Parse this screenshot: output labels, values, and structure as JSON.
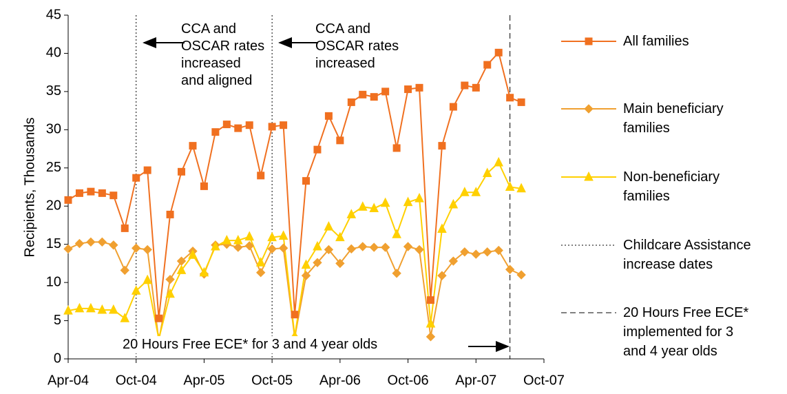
{
  "chart_data": {
    "type": "line",
    "x": [
      "Apr-04",
      "May-04",
      "Jun-04",
      "Jul-04",
      "Aug-04",
      "Sep-04",
      "Oct-04",
      "Nov-04",
      "Dec-04",
      "Jan-05",
      "Feb-05",
      "Mar-05",
      "Apr-05",
      "May-05",
      "Jun-05",
      "Jul-05",
      "Aug-05",
      "Sep-05",
      "Oct-05",
      "Nov-05",
      "Dec-05",
      "Jan-06",
      "Feb-06",
      "Mar-06",
      "Apr-06",
      "May-06",
      "Jun-06",
      "Jul-06",
      "Aug-06",
      "Sep-06",
      "Oct-06",
      "Nov-06",
      "Dec-06",
      "Jan-07",
      "Feb-07",
      "Mar-07",
      "Apr-07",
      "May-07",
      "Jun-07",
      "Jul-07",
      "Aug-07"
    ],
    "series": [
      {
        "name": "All families",
        "color": "#f07020",
        "marker": "square",
        "values": [
          20.8,
          21.7,
          21.9,
          21.7,
          21.4,
          17.1,
          23.7,
          24.7,
          5.3,
          18.9,
          24.5,
          27.9,
          22.6,
          29.7,
          30.7,
          30.2,
          30.6,
          24.0,
          30.4,
          30.6,
          5.8,
          23.3,
          27.4,
          31.8,
          28.6,
          33.6,
          34.6,
          34.3,
          35.0,
          27.6,
          35.3,
          35.5,
          7.7,
          27.9,
          33.0,
          35.8,
          35.5,
          38.5,
          40.1,
          34.2,
          33.6
        ]
      },
      {
        "name": "Main beneficiary families",
        "color": "#f0a030",
        "marker": "diamond",
        "values": [
          14.4,
          15.1,
          15.3,
          15.3,
          14.9,
          11.6,
          14.5,
          14.3,
          2.4,
          10.4,
          12.8,
          14.1,
          11.1,
          14.9,
          15.0,
          14.6,
          14.8,
          11.3,
          14.4,
          14.5,
          2.8,
          10.9,
          12.6,
          14.3,
          12.5,
          14.4,
          14.7,
          14.6,
          14.6,
          11.2,
          14.7,
          14.3,
          2.9,
          10.9,
          12.8,
          14.0,
          13.7,
          14.0,
          14.2,
          11.7,
          11.0
        ]
      },
      {
        "name": "Non-beneficiary families",
        "color": "#ffd000",
        "marker": "triangle",
        "values": [
          6.3,
          6.6,
          6.6,
          6.4,
          6.4,
          5.3,
          8.9,
          10.3,
          2.6,
          8.5,
          11.6,
          13.6,
          11.3,
          14.7,
          15.5,
          15.5,
          16.0,
          12.6,
          15.9,
          16.1,
          3.0,
          12.3,
          14.7,
          17.3,
          15.9,
          18.9,
          19.9,
          19.7,
          20.4,
          16.3,
          20.5,
          21.0,
          4.6,
          17.0,
          20.2,
          21.8,
          21.8,
          24.3,
          25.7,
          22.5,
          22.3
        ]
      }
    ],
    "reference_lines": [
      {
        "name": "Childcare Assistance increase dates",
        "x": [
          "Oct-04",
          "Oct-05"
        ],
        "style": "dotted"
      },
      {
        "name": "20 Hours Free ECE* implemented for 3 and 4 year olds",
        "x": [
          "Jul-07"
        ],
        "style": "dashed"
      }
    ],
    "annotations": [
      "CCA and\nOSCAR rates\nincreased\nand aligned",
      "CCA and\nOSCAR rates\nincreased",
      "20 Hours Free ECE* for 3 and 4 year olds"
    ],
    "ylabel": "Recipients, Thousands",
    "xlim": [
      "Apr-04",
      "Oct-07"
    ],
    "xticks": [
      "Apr-04",
      "Oct-04",
      "Apr-05",
      "Oct-05",
      "Apr-06",
      "Oct-06",
      "Apr-07",
      "Oct-07"
    ],
    "ylim": [
      0,
      45
    ],
    "yticks": [
      0,
      5,
      10,
      15,
      20,
      25,
      30,
      35,
      40,
      45
    ],
    "grid": false,
    "legend": "right"
  }
}
